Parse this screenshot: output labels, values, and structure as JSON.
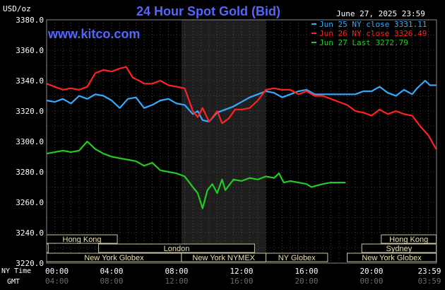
{
  "chart_data": {
    "type": "line",
    "title": "24 Hour Spot Gold (Bid)",
    "watermark": "www.kitco.com",
    "timestamp": "June 27, 2025 23:59",
    "ylabel": "USD/oz",
    "ylim": [
      3220,
      3380
    ],
    "yticks": [
      "3380.0",
      "3360.0",
      "3340.0",
      "3320.0",
      "3300.0",
      "3280.0",
      "3260.0",
      "3240.0",
      "3220.0"
    ],
    "xlim": [
      0,
      24
    ],
    "x_axis_label_ny": "NY Time",
    "x_axis_label_gmt": "GMT",
    "xticks_ny": [
      "00:00",
      "04:00",
      "08:00",
      "12:00",
      "16:00",
      "20:00",
      "23:59"
    ],
    "xticks_gmt": [
      "04:00",
      "08:00",
      "12:00",
      "16:00",
      "20:00",
      "00:00",
      "03:59"
    ],
    "shaded_hours": [
      8.3,
      13.5
    ],
    "grid": true,
    "legend_position": "top-right",
    "series": [
      {
        "name": "Jun 25 NY close 3331.11",
        "color": "#33aaff",
        "points": [
          [
            0,
            3327
          ],
          [
            0.5,
            3326
          ],
          [
            1,
            3328
          ],
          [
            1.5,
            3325
          ],
          [
            2,
            3330
          ],
          [
            2.5,
            3328
          ],
          [
            3,
            3331
          ],
          [
            3.5,
            3330
          ],
          [
            4,
            3327
          ],
          [
            4.5,
            3322
          ],
          [
            5,
            3328
          ],
          [
            5.5,
            3329
          ],
          [
            6,
            3322
          ],
          [
            6.5,
            3324
          ],
          [
            7,
            3327
          ],
          [
            7.5,
            3328
          ],
          [
            8,
            3325
          ],
          [
            8.5,
            3324
          ],
          [
            9,
            3318
          ],
          [
            9.3,
            3320
          ],
          [
            9.6,
            3314
          ],
          [
            10,
            3313
          ],
          [
            10.5,
            3319
          ],
          [
            11,
            3321
          ],
          [
            11.5,
            3323
          ],
          [
            12,
            3326
          ],
          [
            12.5,
            3329
          ],
          [
            13,
            3331
          ],
          [
            13.5,
            3333
          ],
          [
            14,
            3332
          ],
          [
            14.5,
            3329
          ],
          [
            15,
            3331
          ],
          [
            15.5,
            3333
          ],
          [
            16,
            3334
          ],
          [
            16.5,
            3331
          ],
          [
            17,
            3331
          ],
          [
            18,
            3331
          ],
          [
            19,
            3331
          ],
          [
            19.5,
            3333
          ],
          [
            20,
            3333
          ],
          [
            20.5,
            3336
          ],
          [
            21,
            3332
          ],
          [
            21.5,
            3330
          ],
          [
            22,
            3334
          ],
          [
            22.5,
            3331
          ],
          [
            22.8,
            3335
          ],
          [
            23.3,
            3340
          ],
          [
            23.6,
            3337
          ],
          [
            23.98,
            3337
          ]
        ]
      },
      {
        "name": "Jun 26 NY close 3326.49",
        "color": "#ff2222",
        "points": [
          [
            0,
            3338
          ],
          [
            0.5,
            3336
          ],
          [
            1,
            3334
          ],
          [
            1.5,
            3335
          ],
          [
            2,
            3334
          ],
          [
            2.5,
            3336
          ],
          [
            3,
            3345
          ],
          [
            3.5,
            3347
          ],
          [
            4,
            3346
          ],
          [
            4.5,
            3348
          ],
          [
            4.9,
            3349
          ],
          [
            5.3,
            3342
          ],
          [
            5.7,
            3340
          ],
          [
            6,
            3338
          ],
          [
            6.5,
            3338
          ],
          [
            7,
            3340
          ],
          [
            7.5,
            3337
          ],
          [
            8,
            3336
          ],
          [
            8.5,
            3335
          ],
          [
            9,
            3320
          ],
          [
            9.3,
            3316
          ],
          [
            9.6,
            3322
          ],
          [
            10,
            3313
          ],
          [
            10.5,
            3320
          ],
          [
            10.8,
            3312
          ],
          [
            11.2,
            3315
          ],
          [
            11.6,
            3321
          ],
          [
            12,
            3321
          ],
          [
            12.5,
            3322
          ],
          [
            13,
            3327
          ],
          [
            13.5,
            3334
          ],
          [
            14,
            3335
          ],
          [
            14.5,
            3334
          ],
          [
            15,
            3334
          ],
          [
            15.5,
            3331
          ],
          [
            16,
            3333
          ],
          [
            16.5,
            3330
          ],
          [
            17,
            3330
          ],
          [
            17.5,
            3328
          ],
          [
            18,
            3326
          ],
          [
            18.5,
            3324
          ],
          [
            19,
            3320
          ],
          [
            19.5,
            3319
          ],
          [
            20,
            3317
          ],
          [
            20.5,
            3321
          ],
          [
            21,
            3318
          ],
          [
            21.5,
            3320
          ],
          [
            22,
            3318
          ],
          [
            22.5,
            3317
          ],
          [
            23,
            3310
          ],
          [
            23.5,
            3304
          ],
          [
            23.98,
            3295
          ]
        ]
      },
      {
        "name": "Jun 27 Last 3272.79",
        "color": "#22cc22",
        "points": [
          [
            0,
            3292
          ],
          [
            0.5,
            3293
          ],
          [
            1,
            3294
          ],
          [
            1.5,
            3293
          ],
          [
            2,
            3294
          ],
          [
            2.5,
            3300
          ],
          [
            3,
            3295
          ],
          [
            3.5,
            3292
          ],
          [
            4,
            3290
          ],
          [
            4.5,
            3289
          ],
          [
            5,
            3288
          ],
          [
            5.5,
            3287
          ],
          [
            6,
            3284
          ],
          [
            6.5,
            3286
          ],
          [
            7,
            3281
          ],
          [
            7.5,
            3280
          ],
          [
            8,
            3279
          ],
          [
            8.5,
            3277
          ],
          [
            9,
            3270
          ],
          [
            9.3,
            3266
          ],
          [
            9.6,
            3256
          ],
          [
            9.9,
            3268
          ],
          [
            10.2,
            3272
          ],
          [
            10.5,
            3266
          ],
          [
            10.8,
            3275
          ],
          [
            11,
            3268
          ],
          [
            11.5,
            3275
          ],
          [
            12,
            3274
          ],
          [
            12.5,
            3276
          ],
          [
            13,
            3275
          ],
          [
            13.5,
            3277
          ],
          [
            14,
            3276
          ],
          [
            14.3,
            3279
          ],
          [
            14.6,
            3273
          ],
          [
            15,
            3274
          ],
          [
            15.5,
            3273
          ],
          [
            16,
            3272
          ],
          [
            16.3,
            3270
          ],
          [
            16.6,
            3271
          ],
          [
            17,
            3272
          ],
          [
            17.5,
            3273
          ],
          [
            18,
            3273
          ],
          [
            18.4,
            3273
          ]
        ]
      }
    ],
    "sessions": [
      {
        "label": "Hong Kong",
        "start": 0,
        "end": 4.35,
        "row": 0
      },
      {
        "label": "Hong Kong",
        "start": 20.6,
        "end": 23.98,
        "row": 0
      },
      {
        "label": "London",
        "start": 0,
        "end": 0.1,
        "row": 1
      },
      {
        "label": "London",
        "start": 3.2,
        "end": 12.8,
        "row": 1
      },
      {
        "label": "Sydney",
        "start": 19.4,
        "end": 23.98,
        "row": 1
      },
      {
        "label": "New York Globex",
        "start": 0,
        "end": 8.3,
        "row": 2
      },
      {
        "label": "New York NYMEX",
        "start": 8.3,
        "end": 13.5,
        "row": 2
      },
      {
        "label": "NY Globex",
        "start": 13.5,
        "end": 17.3,
        "row": 2
      },
      {
        "label": "New York Globex",
        "start": 18.5,
        "end": 23.98,
        "row": 2
      }
    ]
  }
}
